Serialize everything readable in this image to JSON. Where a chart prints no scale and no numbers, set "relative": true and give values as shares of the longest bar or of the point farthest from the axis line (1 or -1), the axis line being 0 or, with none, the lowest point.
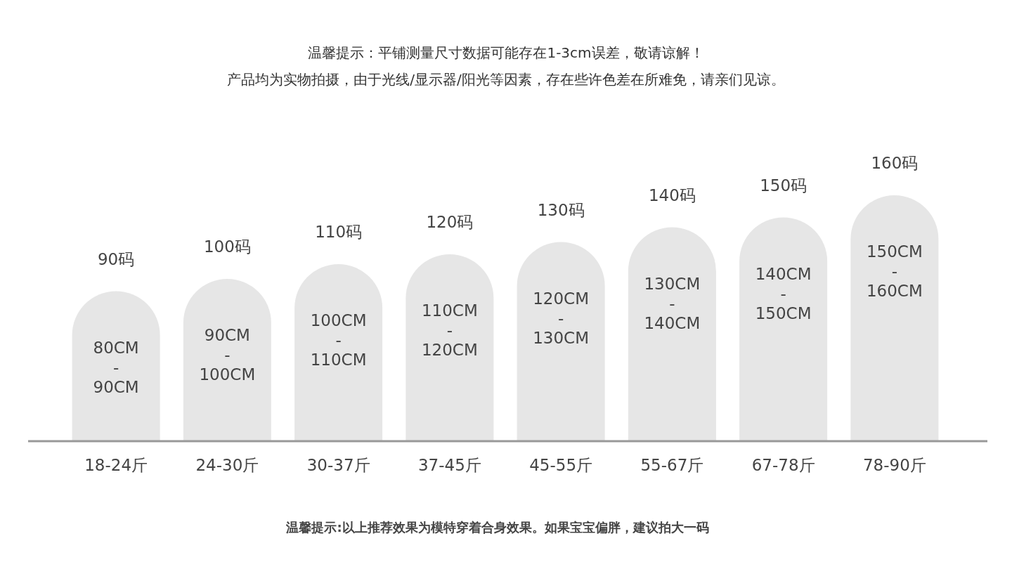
{
  "chart_data": {
    "type": "bar",
    "relative": true,
    "title": "温馨提示：平铺测量尺寸数据可能存在1-3cm误差，敬请谅解！",
    "subtitle": "产品均为实物拍摄，由于光线/显示器/阳光等因素，存在些许色差在所难免，请亲们见谅。",
    "categories": [
      "18-24斤",
      "24-30斤",
      "30-37斤",
      "37-45斤",
      "45-55斤",
      "55-67斤",
      "67-78斤",
      "78-90斤"
    ],
    "values": [
      0.61,
      0.66,
      0.72,
      0.76,
      0.81,
      0.87,
      0.91,
      1
    ],
    "color": "#e6e6e6",
    "annotations": [
      {
        "text": "90码",
        "x": "18-24斤",
        "y": 0.61
      },
      {
        "text": "100码",
        "x": "24-30斤",
        "y": 0.66
      },
      {
        "text": "110码",
        "x": "30-37斤",
        "y": 0.72
      },
      {
        "text": "120码",
        "x": "37-45斤",
        "y": 0.76
      },
      {
        "text": "130码",
        "x": "45-55斤",
        "y": 0.81
      },
      {
        "text": "140码",
        "x": "55-67斤",
        "y": 0.87
      },
      {
        "text": "150码",
        "x": "67-78斤",
        "y": 0.91
      },
      {
        "text": "160码",
        "x": "78-90斤",
        "y": 1
      },
      {
        "text": "80CM\n-\n90CM",
        "x": "18-24斤",
        "y": 0.61
      },
      {
        "text": "90CM\n-\n100CM",
        "x": "24-30斤",
        "y": 0.66
      },
      {
        "text": "100CM\n-\n110CM",
        "x": "30-37斤",
        "y": 0.72
      },
      {
        "text": "110CM\n-\n120CM",
        "x": "37-45斤",
        "y": 0.76
      },
      {
        "text": "120CM\n-\n130CM",
        "x": "45-55斤",
        "y": 0.81
      },
      {
        "text": "130CM\n-\n140CM",
        "x": "55-67斤",
        "y": 0.87
      },
      {
        "text": "140CM\n-\n150CM",
        "x": "67-78斤",
        "y": 0.91
      },
      {
        "text": "150CM\n-\n160CM",
        "x": "78-90斤",
        "y": 1
      },
      "温馨提示:以上推荐效果为模特穿着合身效果。如果宝宝偏胖，建议拍大一码"
    ]
  }
}
